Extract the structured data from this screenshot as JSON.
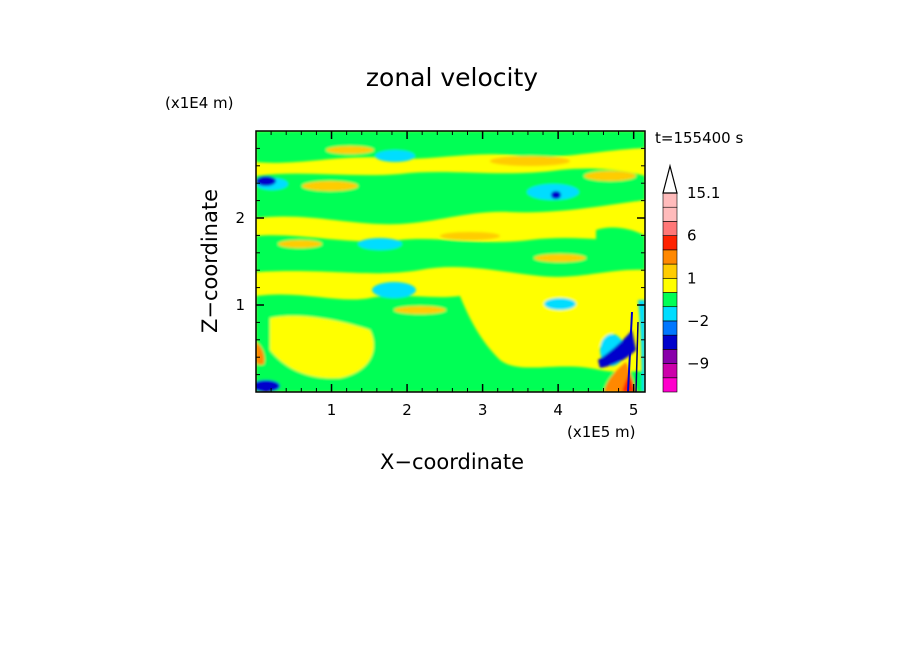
{
  "chart_data": {
    "type": "heatmap",
    "title": "zonal velocity",
    "xlabel": "X−coordinate",
    "ylabel": "Z−coordinate",
    "x_unit": "(x1E5 m)",
    "y_unit": "(x1E4 m)",
    "time_label": "t=155400 s",
    "xlim": [
      0,
      5.15
    ],
    "ylim": [
      0,
      3.0
    ],
    "x_ticks": [
      1,
      2,
      3,
      4,
      5
    ],
    "y_ticks": [
      1,
      2
    ],
    "colorbar": {
      "max_label": "15.1",
      "labels": [
        {
          "value": 15.1,
          "text": "15.1"
        },
        {
          "value": 6,
          "text": "6"
        },
        {
          "value": 1,
          "text": "1"
        },
        {
          "value": -2,
          "text": "−2"
        },
        {
          "value": -9,
          "text": "−9"
        }
      ],
      "levels": [
        {
          "from": -15,
          "to": -12,
          "color": "#ff00cc"
        },
        {
          "from": -12,
          "to": -9,
          "color": "#cc00aa"
        },
        {
          "from": -9,
          "to": -6,
          "color": "#8800aa"
        },
        {
          "from": -6,
          "to": -4,
          "color": "#0000cc"
        },
        {
          "from": -4,
          "to": -2,
          "color": "#0077ff"
        },
        {
          "from": -2,
          "to": -1,
          "color": "#00ddff"
        },
        {
          "from": -1,
          "to": 0,
          "color": "#00ff55"
        },
        {
          "from": 0,
          "to": 1,
          "color": "#ffff00"
        },
        {
          "from": 1,
          "to": 2,
          "color": "#ffcc00"
        },
        {
          "from": 2,
          "to": 4,
          "color": "#ff8800"
        },
        {
          "from": 4,
          "to": 6,
          "color": "#ff2200"
        },
        {
          "from": 6,
          "to": 9,
          "color": "#ff7777"
        },
        {
          "from": 9,
          "to": 12,
          "color": "#ffbbbb"
        },
        {
          "from": 12,
          "to": 15.1,
          "color": "#ffbbbb"
        }
      ]
    },
    "colors": {
      "green": "#00ff55",
      "yellow": "#ffff00",
      "orange_yellow": "#ffcc00",
      "cyan": "#00ddff",
      "blue": "#0000cc",
      "orange": "#ff8800",
      "red": "#ff2200",
      "magenta": "#ff00cc"
    }
  }
}
